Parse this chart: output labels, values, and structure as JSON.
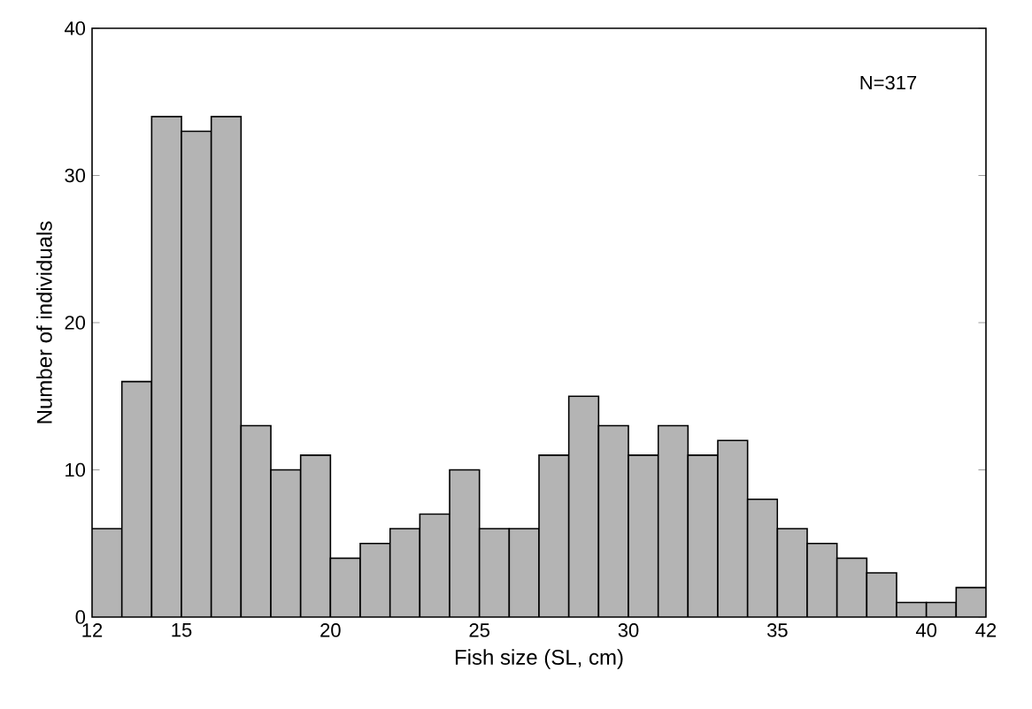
{
  "chart_data": {
    "type": "histogram",
    "xlabel": "Fish size (SL, cm)",
    "ylabel": "Number of individuals",
    "annotations": [
      "N=317"
    ],
    "bins": [
      12,
      13,
      14,
      15,
      16,
      17,
      18,
      19,
      20,
      21,
      22,
      23,
      24,
      25,
      26,
      27,
      28,
      29,
      30,
      31,
      32,
      33,
      34,
      35,
      36,
      37,
      38,
      39,
      40,
      41,
      42
    ],
    "values": [
      6,
      16,
      34,
      33,
      34,
      13,
      10,
      11,
      4,
      5,
      6,
      7,
      10,
      6,
      6,
      11,
      15,
      13,
      11,
      13,
      11,
      12,
      8,
      6,
      5,
      4,
      3,
      1,
      1,
      2
    ],
    "color": "#b4b4b4",
    "xlim": [
      12,
      42
    ],
    "ylim": [
      0,
      40
    ],
    "xticks": [
      12,
      15,
      20,
      25,
      30,
      35,
      40,
      42
    ],
    "yticks": [
      0,
      10,
      20,
      30,
      40
    ],
    "grid": false
  }
}
